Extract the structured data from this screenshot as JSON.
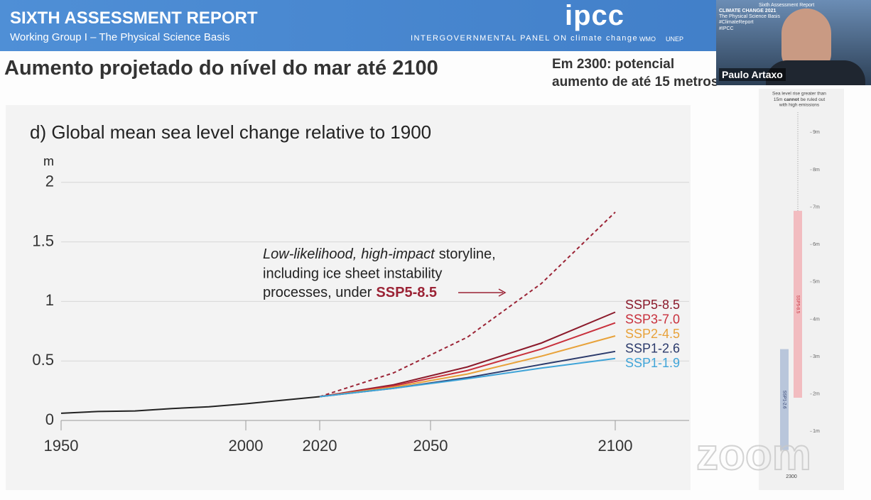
{
  "header": {
    "title": "SIXTH ASSESSMENT REPORT",
    "subtitle": "Working Group I – The Physical Science Basis",
    "logo": "ipcc",
    "panel": "INTERGOVERNMENTAL PANEL ON climate change",
    "partners": [
      "WMO",
      "UNEP"
    ]
  },
  "slide": {
    "title": "Aumento projetado do nível do mar até 2100",
    "note": [
      "Em 2300: potencial",
      "aumento de até 15 metros"
    ]
  },
  "video": {
    "name": "Paulo Artaxo",
    "overlay": [
      "Sixth Assessment Report",
      "CLIMATE CHANGE 2021",
      "The Physical Science Basis",
      "#ClimateReport",
      "#IPCC"
    ]
  },
  "watermark": "zoom",
  "chart_data": [
    {
      "type": "line",
      "title": "d) Global mean sea level change relative to 1900",
      "y_label": "m",
      "xlim": [
        1950,
        2120
      ],
      "ylim": [
        0,
        2.1
      ],
      "xticks": [
        1950,
        2000,
        2020,
        2050,
        2100
      ],
      "yticks": [
        0,
        0.5,
        1,
        1.5,
        2
      ],
      "grid": true,
      "annotation": [
        "Low-likelihood,",
        "high-impact",
        "storyline,",
        "including ice sheet instability",
        "processes, under",
        "SSP5-8.5"
      ],
      "series": [
        {
          "color": "#222222",
          "x": [
            1950,
            1960,
            1970,
            1980,
            1990,
            2000,
            2010,
            2020
          ],
          "values": [
            0.06,
            0.075,
            0.08,
            0.1,
            0.115,
            0.14,
            0.17,
            0.2
          ]
        },
        {
          "color": "#9b2335",
          "style": "dashed",
          "x": [
            2020,
            2040,
            2060,
            2080,
            2100
          ],
          "values": [
            0.2,
            0.4,
            0.7,
            1.15,
            1.75
          ]
        },
        {
          "name": "SSP5-8.5",
          "color": "#8b1a2b",
          "x": [
            2020,
            2040,
            2060,
            2080,
            2100
          ],
          "values": [
            0.2,
            0.3,
            0.45,
            0.65,
            0.91
          ]
        },
        {
          "name": "SSP3-7.0",
          "color": "#c8303c",
          "x": [
            2020,
            2040,
            2060,
            2080,
            2100
          ],
          "values": [
            0.2,
            0.29,
            0.42,
            0.6,
            0.82
          ]
        },
        {
          "name": "SSP2-4.5",
          "color": "#e8a23a",
          "x": [
            2020,
            2040,
            2060,
            2080,
            2100
          ],
          "values": [
            0.2,
            0.28,
            0.39,
            0.54,
            0.71
          ]
        },
        {
          "name": "SSP1-2.6",
          "color": "#2b3a6b",
          "x": [
            2020,
            2040,
            2060,
            2080,
            2100
          ],
          "values": [
            0.2,
            0.27,
            0.36,
            0.47,
            0.58
          ]
        },
        {
          "name": "SSP1-1.9",
          "color": "#3fa4d8",
          "x": [
            2020,
            2040,
            2060,
            2080,
            2100
          ],
          "values": [
            0.2,
            0.27,
            0.35,
            0.44,
            0.52
          ]
        }
      ]
    },
    {
      "type": "range-bar",
      "title": [
        "Sea level rise greater than",
        "15m",
        "cannot",
        "be ruled out",
        "with high emissions"
      ],
      "categories": [
        "2300"
      ],
      "ylim": [
        0,
        9.5
      ],
      "yticks": [
        {
          "value": 1,
          "label": "1m"
        },
        {
          "value": 2,
          "label": "2m"
        },
        {
          "value": 3,
          "label": "3m"
        },
        {
          "value": 4,
          "label": "4m"
        },
        {
          "value": 5,
          "label": "5m"
        },
        {
          "value": 6,
          "label": "6m"
        },
        {
          "value": 7,
          "label": "7m"
        },
        {
          "value": 8,
          "label": "8m"
        },
        {
          "value": 9,
          "label": "9m"
        }
      ],
      "series": [
        {
          "name": "SSP1-2.6",
          "color": "#b9c6db",
          "low": 0.5,
          "high": 3.2
        },
        {
          "name": "SSP5-8.5",
          "color": "#f2bcc0",
          "low": 1.9,
          "high": 6.9
        }
      ]
    }
  ]
}
